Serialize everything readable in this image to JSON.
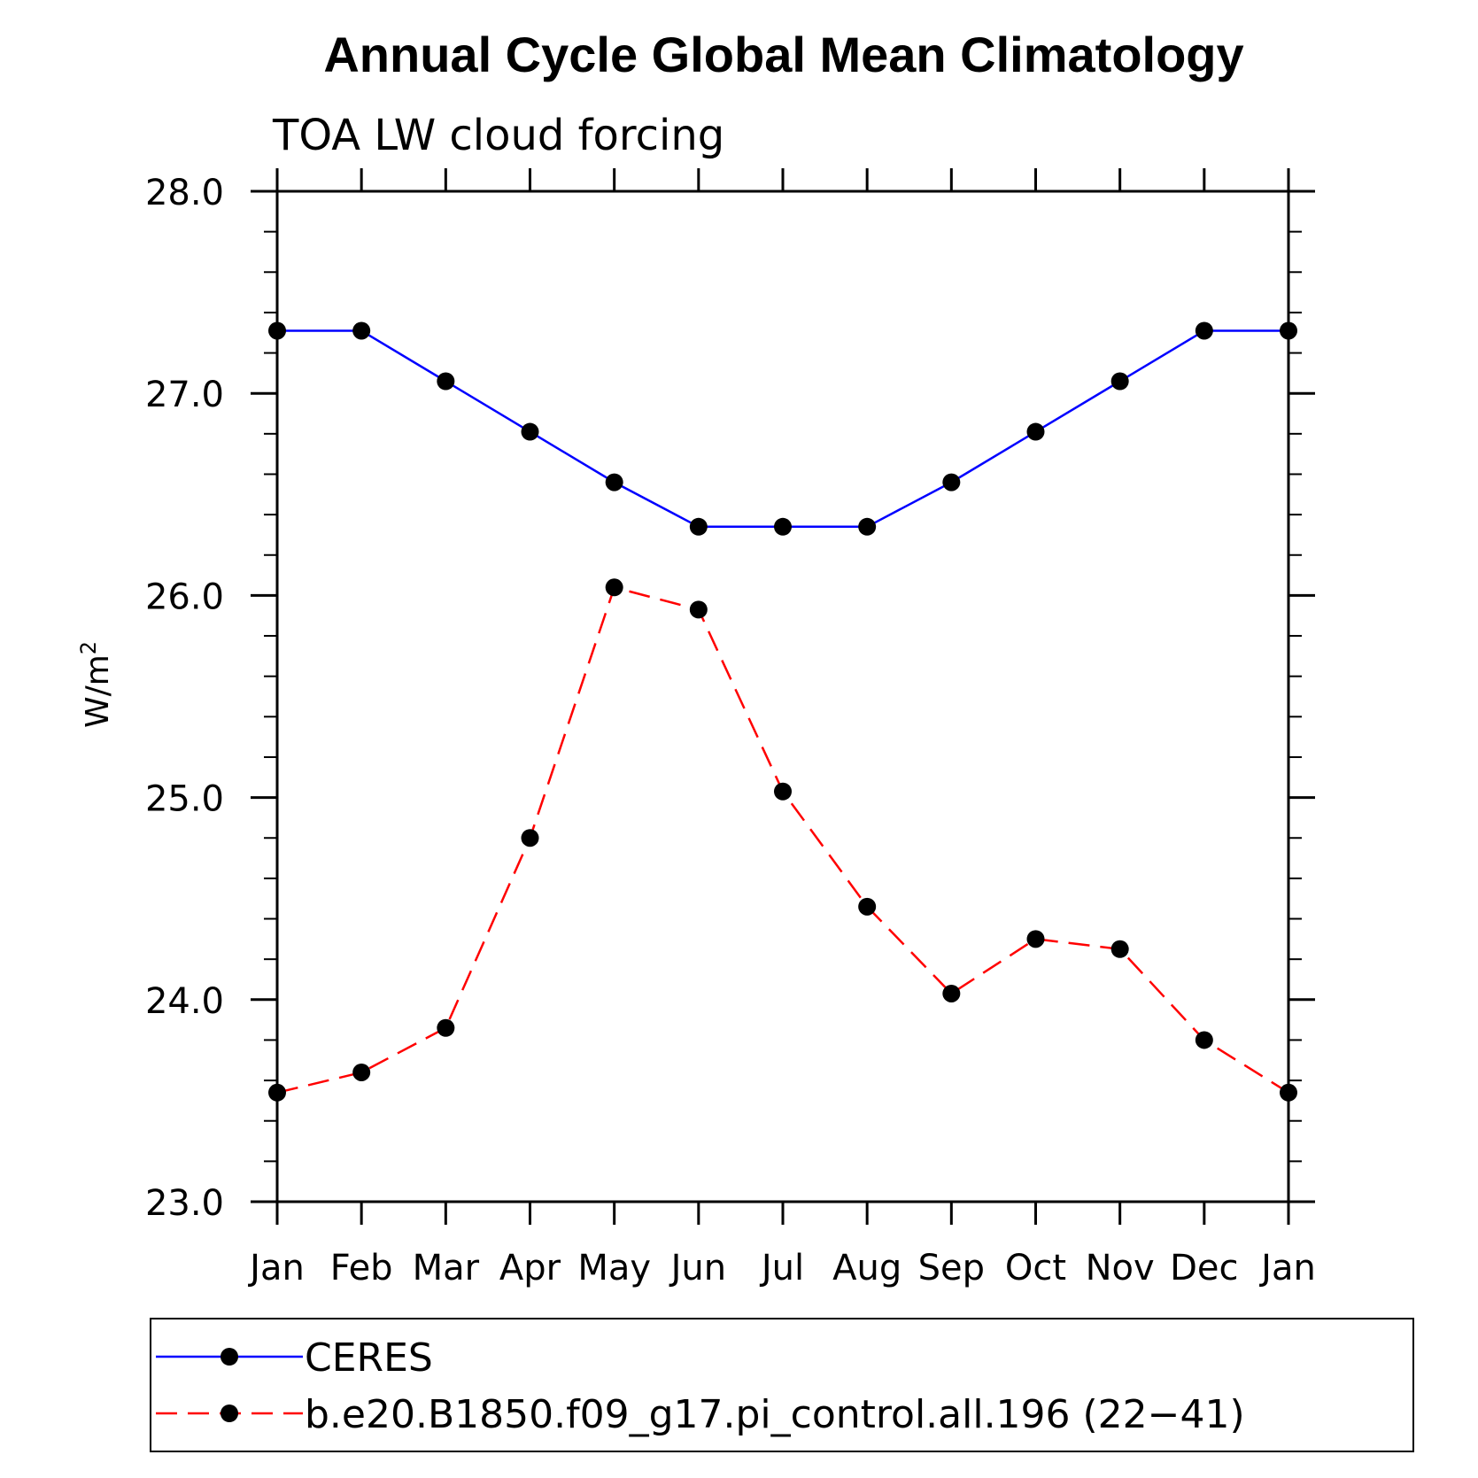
{
  "chart_data": {
    "type": "line",
    "title": "Annual Cycle Global Mean Climatology",
    "subtitle": "TOA LW cloud forcing",
    "ylabel": "W/m",
    "ylabel_superscript": "2",
    "xlabel": "",
    "categories": [
      "Jan",
      "Feb",
      "Mar",
      "Apr",
      "May",
      "Jun",
      "Jul",
      "Aug",
      "Sep",
      "Oct",
      "Nov",
      "Dec",
      "Jan"
    ],
    "ylim": [
      23.0,
      28.0
    ],
    "yticks": [
      "28.0",
      "27.0",
      "26.0",
      "25.0",
      "24.0",
      "23.0"
    ],
    "ytick_values": [
      28.0,
      27.0,
      26.0,
      25.0,
      24.0,
      23.0
    ],
    "grid": false,
    "legend_position": "bottom",
    "series": [
      {
        "name": "CERES",
        "color": "#0000ff",
        "line_style": "solid",
        "marker": "filled-circle",
        "values": [
          27.31,
          27.31,
          27.06,
          26.81,
          26.56,
          26.34,
          26.34,
          26.34,
          26.56,
          26.81,
          27.06,
          27.31,
          27.31
        ]
      },
      {
        "name": "b.e20.B1850.f09_g17.pi_control.all.196 (22−41)",
        "color": "#ff0000",
        "line_style": "dashed",
        "marker": "filled-circle",
        "values": [
          23.54,
          23.64,
          23.86,
          24.8,
          26.04,
          25.93,
          25.03,
          24.46,
          24.03,
          24.3,
          24.25,
          23.8,
          23.54
        ]
      }
    ]
  }
}
